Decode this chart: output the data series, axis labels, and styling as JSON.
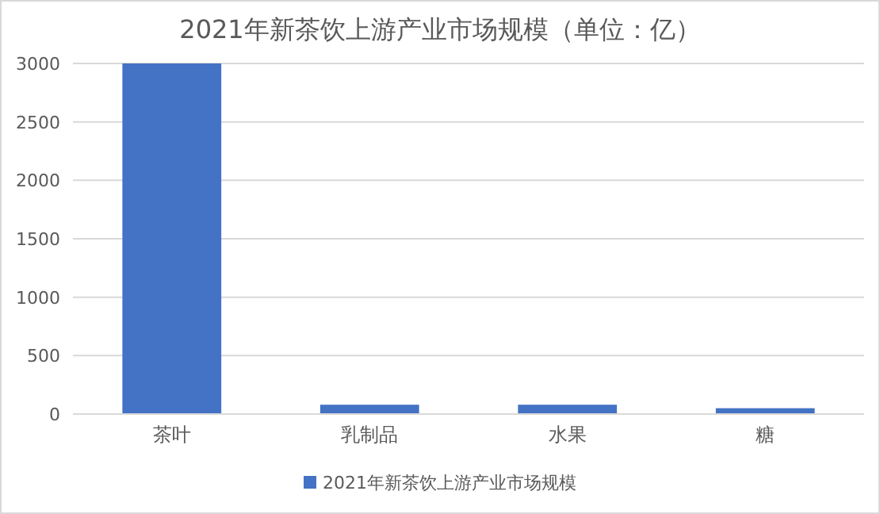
{
  "chart_data": {
    "type": "bar",
    "title": "2021年新茶饮上游产业市场规模（单位：亿）",
    "categories": [
      "茶叶",
      "乳制品",
      "水果",
      "糖"
    ],
    "series": [
      {
        "name": "2021年新茶饮上游产业市场规模",
        "color": "#4472c4",
        "values": [
          3000,
          80,
          80,
          50
        ]
      }
    ],
    "ylim": [
      0,
      3000
    ],
    "yticks": [
      0,
      500,
      1000,
      1500,
      2000,
      2500,
      3000
    ],
    "grid": "y",
    "legend": "bottom"
  }
}
